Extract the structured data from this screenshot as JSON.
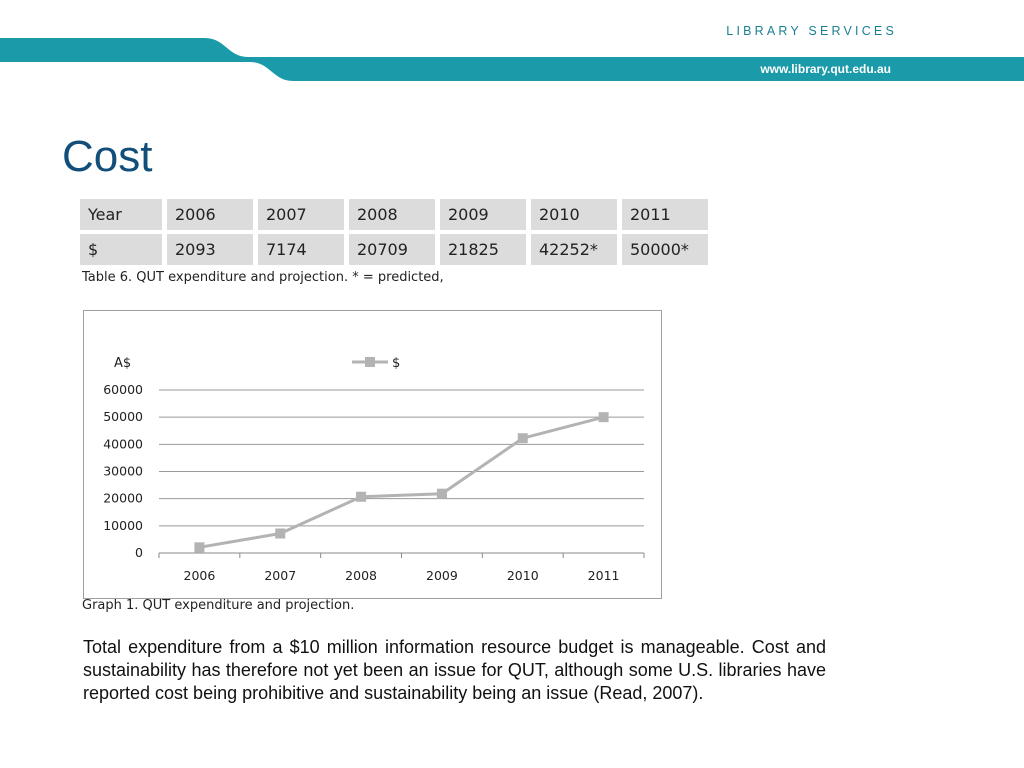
{
  "header": {
    "brand": "LIBRARY SERVICES",
    "url": "www.library.qut.edu.au",
    "banner_color": "#1b9aa9"
  },
  "title": "Cost",
  "table": {
    "header_row": [
      "Year",
      "2006",
      "2007",
      "2008",
      "2009",
      "2010",
      "2011"
    ],
    "value_row": [
      "$",
      "2093",
      "7174",
      "20709",
      "21825",
      "42252*",
      "50000*"
    ],
    "caption": "Table 6. QUT expenditure and projection. * = predicted,"
  },
  "chart_data": {
    "type": "line",
    "ylabel": "A$",
    "categories": [
      "2006",
      "2007",
      "2008",
      "2009",
      "2010",
      "2011"
    ],
    "series": [
      {
        "name": "$",
        "values": [
          2093,
          7174,
          20709,
          21825,
          42252,
          50000
        ],
        "color": "#b3b3b3"
      }
    ],
    "ylim": [
      0,
      60000
    ],
    "yticks": [
      0,
      10000,
      20000,
      30000,
      40000,
      50000,
      60000
    ],
    "grid": true,
    "legend": "top-center",
    "caption": "Graph 1. QUT expenditure and projection."
  },
  "body_text": "Total expenditure from a $10 million information resource budget is manageable. Cost and sustainability has therefore not yet been an issue for QUT, although some U.S. libraries have reported cost being prohibitive and sustainability being an issue (Read, 2007)."
}
